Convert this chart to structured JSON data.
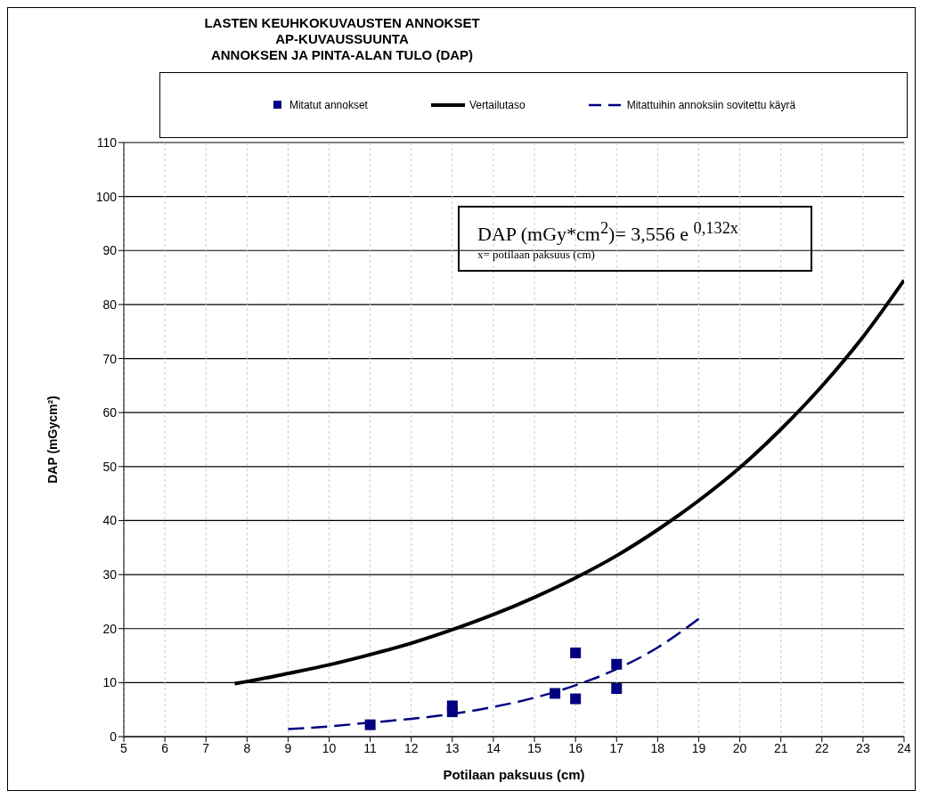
{
  "chart_data": {
    "type": "line",
    "title": "LASTEN KEUHKOKUVAUSTEN ANNOKSET\nAP-KUVAUSSUUNTA\nANNOKSEN JA PINTA-ALAN  TULO (DAP)",
    "xlabel": "Potilaan paksuus (cm)",
    "ylabel": "DAP (mGycm²)",
    "annotations": [
      "DAP (mGy*cm$^{2}$)= 3,556 e $^{0,132x}$",
      "x= potilaan paksuus (cm)"
    ],
    "xlim": [
      5,
      24
    ],
    "xticks": [
      5,
      6,
      7,
      8,
      9,
      10,
      11,
      12,
      13,
      14,
      15,
      16,
      17,
      18,
      19,
      20,
      21,
      22,
      23,
      24
    ],
    "ylim": [
      0,
      110
    ],
    "yticks": [
      0,
      10,
      20,
      30,
      40,
      50,
      60,
      70,
      80,
      90,
      100,
      110
    ],
    "grid": true,
    "legend": "top",
    "series": [
      {
        "name": "Mitatut annokset",
        "type": "scatter",
        "marker": "square",
        "color": "#000080",
        "x": [
          11,
          13,
          13,
          15.5,
          16,
          16,
          17,
          17
        ],
        "values": [
          2.2,
          5.7,
          4.6,
          8.0,
          15.5,
          7.0,
          13.4,
          8.9
        ]
      },
      {
        "name": "Vertailutaso",
        "marker": "none",
        "line_style": "solid",
        "color": "#000000",
        "x": [
          7.7,
          8,
          9,
          10,
          11,
          12,
          13,
          14,
          15,
          16,
          17,
          18,
          19,
          20,
          21,
          22,
          23,
          24
        ],
        "values": [
          9.8,
          10.2,
          11.7,
          13.3,
          15.2,
          17.3,
          19.8,
          22.6,
          25.8,
          29.4,
          33.5,
          38.3,
          43.7,
          49.8,
          56.9,
          64.9,
          74.0,
          84.5
        ]
      },
      {
        "name": "Mitattuihin annoksiin sovitettu käyrä",
        "marker": "none",
        "line_style": "dashed",
        "color": "#000080",
        "x": [
          9,
          10,
          11,
          12,
          13,
          14,
          15,
          16,
          17,
          18,
          19
        ],
        "values": [
          1.4,
          1.9,
          2.6,
          3.3,
          4.2,
          5.5,
          7.2,
          9.5,
          12.5,
          16.5,
          21.8
        ]
      }
    ]
  }
}
